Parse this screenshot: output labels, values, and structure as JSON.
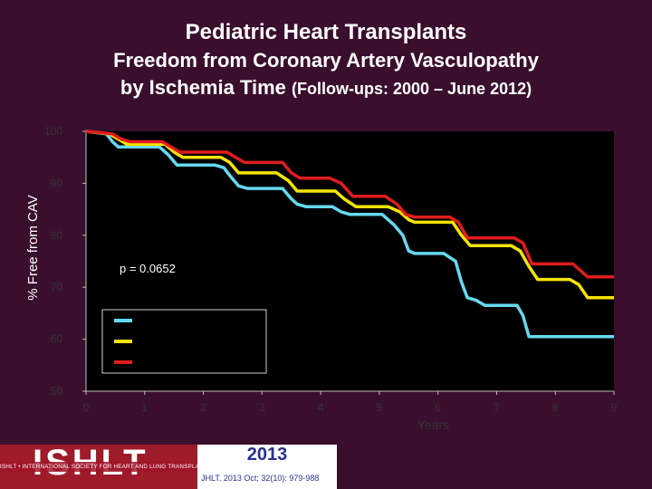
{
  "titles": {
    "line1": "Pediatric Heart Transplants",
    "line2": "Freedom from Coronary Artery Vasculopathy",
    "line3_main": "by Ischemia Time ",
    "line3_small": "(Follow-ups: 2000 – June 2012)"
  },
  "footer": {
    "logo_text": "ISHLT",
    "logo_strap": "ISHLT • INTERNATIONAL SOCIETY FOR HEART AND LUNG TRANSPLANTATION",
    "year": "2013",
    "citation": "JHLT. 2013 Oct; 32(10): 979-988"
  },
  "chart_data": {
    "type": "line",
    "title": "",
    "xlabel": "Years",
    "ylabel": "% Free from CAV",
    "xlim": [
      0,
      9
    ],
    "ylim": [
      50,
      100
    ],
    "xticks": [
      "0",
      "1",
      "2",
      "3",
      "4",
      "5",
      "6",
      "7",
      "8",
      "9"
    ],
    "yticks": [
      "50",
      "60",
      "70",
      "80",
      "90",
      "100"
    ],
    "grid": false,
    "annotation": "p = 0.0652",
    "legend": {
      "placement": "center-left",
      "entries": [
        {
          "color": "#66d9f0",
          "label": ""
        },
        {
          "color": "#f5e400",
          "label": ""
        },
        {
          "color": "#e01c1c",
          "label": ""
        }
      ]
    },
    "series": [
      {
        "color": "#66d9f0",
        "x": [
          0,
          0.35,
          0.45,
          0.55,
          0.65,
          1.25,
          1.4,
          1.55,
          2.2,
          2.35,
          2.45,
          2.6,
          2.75,
          3.35,
          3.5,
          3.6,
          3.75,
          4.2,
          4.35,
          4.5,
          5.05,
          5.25,
          5.4,
          5.5,
          5.6,
          6.1,
          6.3,
          6.4,
          6.5,
          6.65,
          6.8,
          7.35,
          7.45,
          7.55,
          9
        ],
        "y": [
          100,
          99.5,
          98,
          97,
          97,
          97,
          95.5,
          93.5,
          93.5,
          93,
          91.5,
          89.5,
          89,
          89,
          87,
          86,
          85.5,
          85.5,
          84.5,
          84,
          84,
          82,
          80,
          77,
          76.5,
          76.5,
          75,
          71,
          68,
          67.5,
          66.5,
          66.5,
          64.5,
          60.5,
          60.5
        ]
      },
      {
        "color": "#f5e400",
        "x": [
          0,
          0.4,
          0.55,
          0.7,
          1.35,
          1.5,
          1.65,
          2.3,
          2.45,
          2.6,
          3.25,
          3.45,
          3.6,
          4.25,
          4.4,
          4.6,
          5.15,
          5.35,
          5.5,
          5.6,
          6.25,
          6.4,
          6.55,
          7.25,
          7.4,
          7.55,
          7.7,
          8.25,
          8.4,
          8.55,
          9
        ],
        "y": [
          100,
          99.5,
          98.5,
          97.5,
          97.5,
          96,
          95,
          95,
          94,
          92,
          92,
          90.5,
          88.5,
          88.5,
          87,
          85.5,
          85.5,
          84.5,
          83,
          82.5,
          82.5,
          80,
          78,
          78,
          77,
          74,
          71.5,
          71.5,
          70.5,
          68,
          68
        ]
      },
      {
        "color": "#e01c1c",
        "x": [
          0,
          0.45,
          0.6,
          0.75,
          1.3,
          1.45,
          1.6,
          2.4,
          2.55,
          2.7,
          3.35,
          3.5,
          3.65,
          4.15,
          4.35,
          4.55,
          5.1,
          5.3,
          5.45,
          5.6,
          6.2,
          6.35,
          6.5,
          7.3,
          7.45,
          7.6,
          8.3,
          8.45,
          8.55,
          9
        ],
        "y": [
          100,
          99.5,
          98.5,
          98,
          98,
          97,
          96,
          96,
          95,
          94,
          94,
          92,
          91,
          91,
          90,
          87.5,
          87.5,
          86,
          84,
          83.5,
          83.5,
          82.5,
          79.5,
          79.5,
          78.5,
          74.5,
          74.5,
          73,
          72,
          72
        ]
      }
    ]
  }
}
